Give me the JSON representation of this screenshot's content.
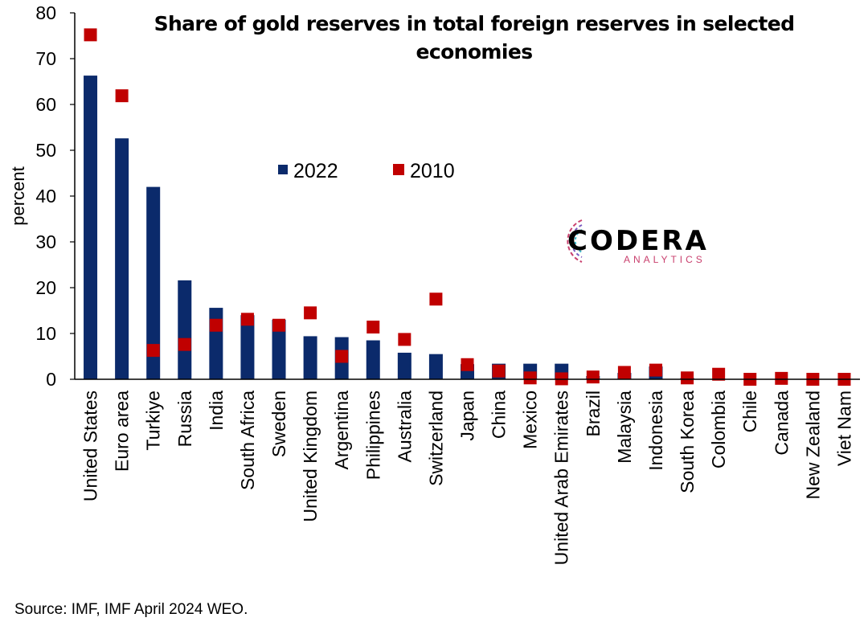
{
  "chart_data": {
    "type": "bar",
    "title": "Share of gold reserves in total foreign reserves in selected economies",
    "ylabel": "percent",
    "ylim": [
      0,
      80
    ],
    "yticks": [
      "0",
      "10",
      "20",
      "30",
      "40",
      "50",
      "60",
      "70",
      "80"
    ],
    "grid": false,
    "legend_position": "top-center",
    "categories": [
      "United States",
      "Euro area",
      "Turkiye",
      "Russia",
      "India",
      "South Africa",
      "Sweden",
      "United Kingdom",
      "Argentina",
      "Philippines",
      "Australia",
      "Switzerland",
      "Japan",
      "China",
      "Mexico",
      "United Arab Emirates",
      "Brazil",
      "Malaysia",
      "Indonesia",
      "South Korea",
      "Colombia",
      "Chile",
      "Canada",
      "New Zealand",
      "Viet Nam"
    ],
    "series": [
      {
        "name": "2022",
        "type": "bar",
        "color": "#0b2a6b",
        "values": [
          66.3,
          52.6,
          42.0,
          21.6,
          15.6,
          14.0,
          13.0,
          9.4,
          9.2,
          8.5,
          5.8,
          5.5,
          3.3,
          3.4,
          3.4,
          3.4,
          0.7,
          1.4,
          2.8,
          0.3,
          0.0,
          0.0,
          0.0,
          0.0,
          0.0
        ]
      },
      {
        "name": "2010",
        "type": "marker",
        "color": "#c00000",
        "values": [
          75.2,
          61.9,
          6.3,
          7.6,
          11.8,
          13.1,
          11.8,
          14.5,
          5.0,
          11.4,
          8.7,
          17.5,
          3.2,
          1.8,
          0.3,
          0.1,
          0.5,
          1.5,
          2.0,
          0.3,
          1.1,
          0.0,
          0.2,
          0.0,
          0.0
        ]
      }
    ],
    "source": "Source: IMF, IMF April 2024 WEO."
  },
  "logo": {
    "name": "CODERA",
    "subtitle": "ANALYTICS"
  }
}
